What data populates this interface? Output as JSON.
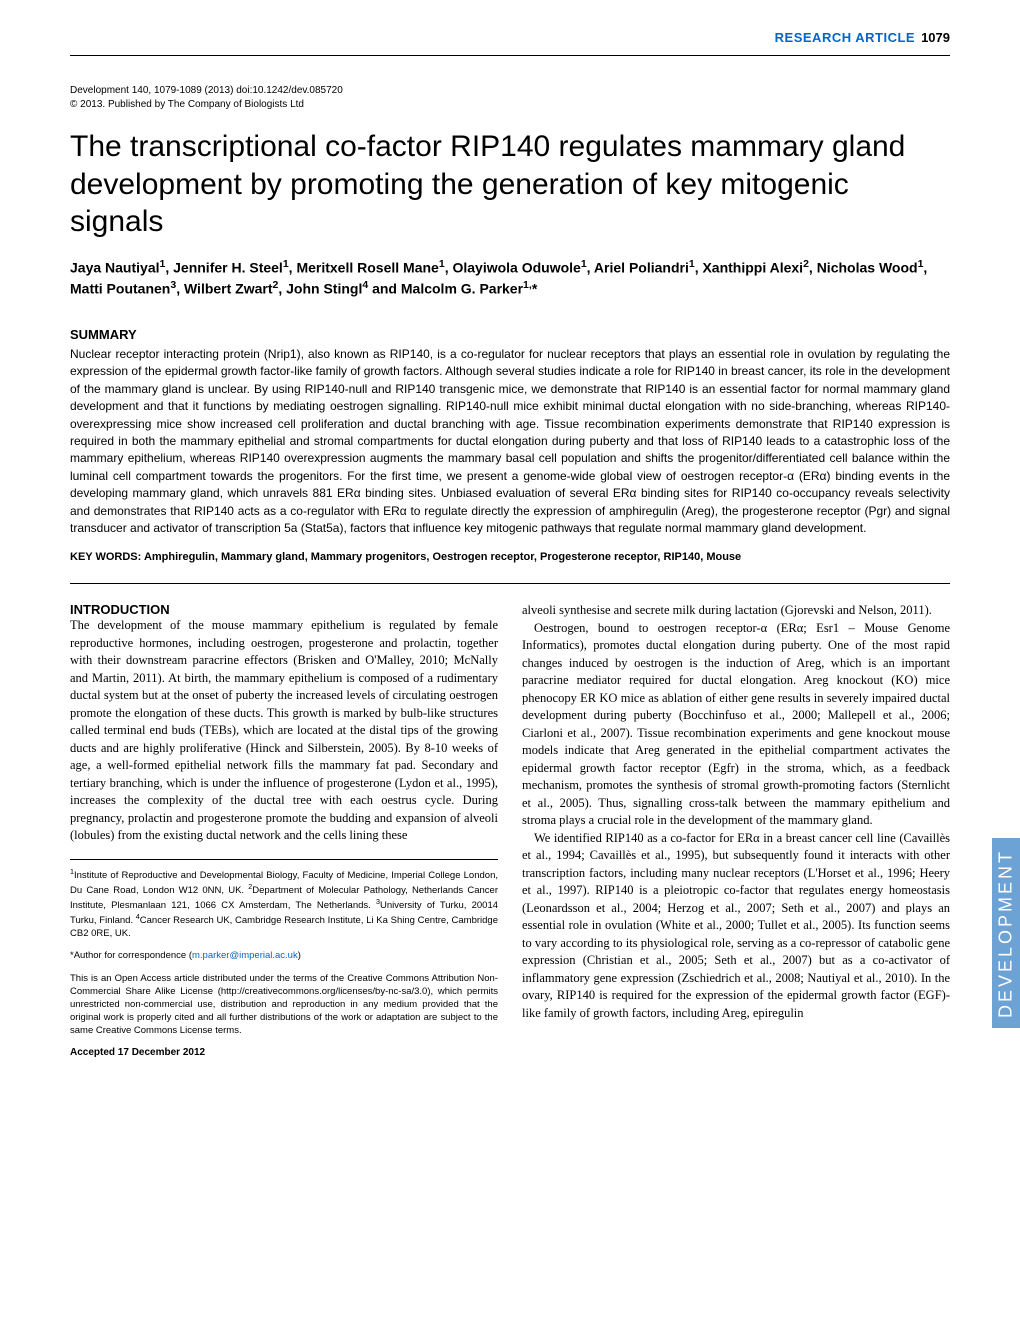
{
  "header": {
    "label": "RESEARCH ARTICLE",
    "page_number": "1079",
    "label_color": "#0066cc"
  },
  "citation": {
    "line1": "Development 140, 1079-1089 (2013) doi:10.1242/dev.085720",
    "line2": "© 2013. Published by The Company of Biologists Ltd"
  },
  "title": "The transcriptional co-factor RIP140 regulates mammary gland development by promoting the generation of key mitogenic signals",
  "authors_html": "Jaya Nautiyal<sup>1</sup>, Jennifer H. Steel<sup>1</sup>, Meritxell Rosell Mane<sup>1</sup>, Olayiwola Oduwole<sup>1</sup>, Ariel Poliandri<sup>1</sup>, Xanthippi Alexi<sup>2</sup>, Nicholas Wood<sup>1</sup>, Matti Poutanen<sup>3</sup>, Wilbert Zwart<sup>2</sup>, John Stingl<sup>4</sup> and Malcolm G. Parker<sup>1,</sup>*",
  "summary": {
    "heading": "SUMMARY",
    "text": "Nuclear receptor interacting protein (Nrip1), also known as RIP140, is a co-regulator for nuclear receptors that plays an essential role in ovulation by regulating the expression of the epidermal growth factor-like family of growth factors. Although several studies indicate a role for RIP140 in breast cancer, its role in the development of the mammary gland is unclear. By using RIP140-null and RIP140 transgenic mice, we demonstrate that RIP140 is an essential factor for normal mammary gland development and that it functions by mediating oestrogen signalling. RIP140-null mice exhibit minimal ductal elongation with no side-branching, whereas RIP140-overexpressing mice show increased cell proliferation and ductal branching with age. Tissue recombination experiments demonstrate that RIP140 expression is required in both the mammary epithelial and stromal compartments for ductal elongation during puberty and that loss of RIP140 leads to a catastrophic loss of the mammary epithelium, whereas RIP140 overexpression augments the mammary basal cell population and shifts the progenitor/differentiated cell balance within the luminal cell compartment towards the progenitors. For the first time, we present a genome-wide global view of oestrogen receptor-α (ERα) binding events in the developing mammary gland, which unravels 881 ERα binding sites. Unbiased evaluation of several ERα binding sites for RIP140 co-occupancy reveals selectivity and demonstrates that RIP140 acts as a co-regulator with ERα to regulate directly the expression of amphiregulin (Areg), the progesterone receptor (Pgr) and signal transducer and activator of transcription 5a (Stat5a), factors that influence key mitogenic pathways that regulate normal mammary gland development."
  },
  "keywords": "KEY WORDS: Amphiregulin, Mammary gland, Mammary progenitors, Oestrogen receptor, Progesterone receptor, RIP140, Mouse",
  "intro": {
    "heading": "INTRODUCTION",
    "col1_p1": "The development of the mouse mammary epithelium is regulated by female reproductive hormones, including oestrogen, progesterone and prolactin, together with their downstream paracrine effectors (Brisken and O'Malley, 2010; McNally and Martin, 2011). At birth, the mammary epithelium is composed of a rudimentary ductal system but at the onset of puberty the increased levels of circulating oestrogen promote the elongation of these ducts. This growth is marked by bulb-like structures called terminal end buds (TEBs), which are located at the distal tips of the growing ducts and are highly proliferative (Hinck and Silberstein, 2005). By 8-10 weeks of age, a well-formed epithelial network fills the mammary fat pad. Secondary and tertiary branching, which is under the influence of progesterone (Lydon et al., 1995), increases the complexity of the ductal tree with each oestrus cycle. During pregnancy, prolactin and progesterone promote the budding and expansion of alveoli (lobules) from the existing ductal network and the cells lining these",
    "col2_p0": "alveoli synthesise and secrete milk during lactation (Gjorevski and Nelson, 2011).",
    "col2_p1": "Oestrogen, bound to oestrogen receptor-α (ERα; Esr1 – Mouse Genome Informatics), promotes ductal elongation during puberty. One of the most rapid changes induced by oestrogen is the induction of Areg, which is an important paracrine mediator required for ductal elongation. Areg knockout (KO) mice phenocopy ER KO mice as ablation of either gene results in severely impaired ductal development during puberty (Bocchinfuso et al., 2000; Mallepell et al., 2006; Ciarloni et al., 2007). Tissue recombination experiments and gene knockout mouse models indicate that Areg generated in the epithelial compartment activates the epidermal growth factor receptor (Egfr) in the stroma, which, as a feedback mechanism, promotes the synthesis of stromal growth-promoting factors (Sternlicht et al., 2005). Thus, signalling cross-talk between the mammary epithelium and stroma plays a crucial role in the development of the mammary gland.",
    "col2_p2": "We identified RIP140 as a co-factor for ERα in a breast cancer cell line (Cavaillès et al., 1994; Cavaillès et al., 1995), but subsequently found it interacts with other transcription factors, including many nuclear receptors (L'Horset et al., 1996; Heery et al., 1997). RIP140 is a pleiotropic co-factor that regulates energy homeostasis (Leonardsson et al., 2004; Herzog et al., 2007; Seth et al., 2007) and plays an essential role in ovulation (White et al., 2000; Tullet et al., 2005). Its function seems to vary according to its physiological role, serving as a co-repressor of catabolic gene expression (Christian et al., 2005; Seth et al., 2007) but as a co-activator of inflammatory gene expression (Zschiedrich et al., 2008; Nautiyal et al., 2010). In the ovary, RIP140 is required for the expression of the epidermal growth factor (EGF)-like family of growth factors, including Areg, epiregulin"
  },
  "footnotes": {
    "affiliations_html": "<sup>1</sup>Institute of Reproductive and Developmental Biology, Faculty of Medicine, Imperial College London, Du Cane Road, London W12 0NN, UK. <sup>2</sup>Department of Molecular Pathology, Netherlands Cancer Institute, Plesmanlaan 121, 1066 CX Amsterdam, The Netherlands. <sup>3</sup>University of Turku, 20014 Turku, Finland. <sup>4</sup>Cancer Research UK, Cambridge Research Institute, Li Ka Shing Centre, Cambridge CB2 0RE, UK.",
    "correspondence": "*Author for correspondence (",
    "email": "m.parker@imperial.ac.uk",
    "correspondence_close": ")",
    "license": "This is an Open Access article distributed under the terms of the Creative Commons Attribution Non-Commercial Share Alike License (http://creativecommons.org/licenses/by-nc-sa/3.0), which permits unrestricted non-commercial use, distribution and reproduction in any medium provided that the original work is properly cited and all further distributions of the work or adaptation are subject to the same Creative Commons License terms.",
    "accepted": "Accepted 17 December 2012"
  },
  "side_tab": {
    "label": "DEVELOPMENT",
    "background": "#6da2d4"
  }
}
